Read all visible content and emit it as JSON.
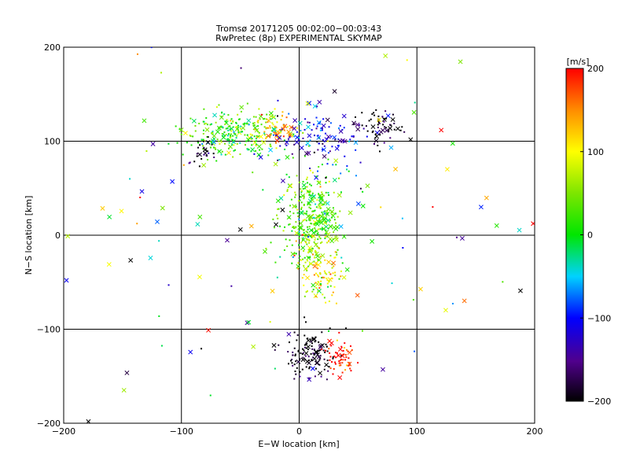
{
  "chart_data": {
    "type": "scatter",
    "title": "Tromsø 20171205 00:02:00−00:03:43",
    "subtitle": "RwPretec (8p) EXPERIMENTAL SKYMAP",
    "xlabel": "E−W location [km]",
    "ylabel": "N−S location [km]",
    "xlim": [
      -200,
      200
    ],
    "ylim": [
      -200,
      200
    ],
    "x_ticks": [
      -200,
      -100,
      0,
      100,
      200
    ],
    "y_ticks": [
      -200,
      -100,
      0,
      100,
      200
    ],
    "x_tick_labels": [
      "−200",
      "−100",
      "0",
      "100",
      "200"
    ],
    "y_tick_labels": [
      "−200",
      "−100",
      "0",
      "100",
      "200"
    ],
    "grid": true,
    "markers": [
      "dot",
      "x"
    ],
    "colorbar": {
      "label": "[m/s]",
      "min": -200,
      "max": 200,
      "ticks": [
        -200,
        -100,
        0,
        100,
        200
      ],
      "tick_labels": [
        "−200",
        "−100",
        "0",
        "100",
        "200"
      ],
      "colormap": "rainbow (black-purple-blue-cyan-green-yellow-red)"
    },
    "clusters": [
      {
        "x": -55,
        "y": 108,
        "sx": 22,
        "sy": 12,
        "v": 20,
        "n": 260
      },
      {
        "x": -20,
        "y": 112,
        "sx": 10,
        "sy": 8,
        "v": 140,
        "n": 70
      },
      {
        "x": 15,
        "y": 105,
        "sx": 25,
        "sy": 15,
        "v": -110,
        "n": 120
      },
      {
        "x": 70,
        "y": 115,
        "sx": 10,
        "sy": 8,
        "v": -200,
        "n": 60
      },
      {
        "x": 10,
        "y": 15,
        "sx": 13,
        "sy": 28,
        "v": 30,
        "n": 360
      },
      {
        "x": 18,
        "y": -40,
        "sx": 10,
        "sy": 18,
        "v": 100,
        "n": 90
      },
      {
        "x": 10,
        "y": -125,
        "sx": 12,
        "sy": 15,
        "v": -200,
        "n": 130
      },
      {
        "x": 35,
        "y": -130,
        "sx": 6,
        "sy": 10,
        "v": 200,
        "n": 60
      },
      {
        "x": -80,
        "y": 85,
        "sx": 6,
        "sy": 8,
        "v": -200,
        "n": 25
      },
      {
        "x": 0,
        "y": 0,
        "sx": 120,
        "sy": 110,
        "v": 0,
        "n": 150
      }
    ]
  }
}
